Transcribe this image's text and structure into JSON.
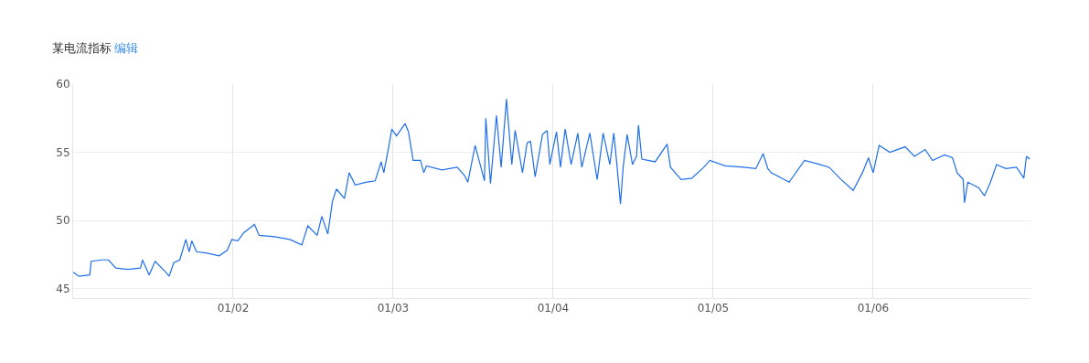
{
  "chart_data": {
    "type": "line",
    "title": "某电流指标",
    "annotations": [
      "编辑"
    ],
    "x": [
      "--01-01T00:00",
      "--01-01T00:54",
      "--01-01T02:30",
      "--01-01T02:42",
      "--01-01T04:18",
      "--01-01T05:18",
      "--01-01T06:24",
      "--01-01T08:12",
      "--01-01T10:06",
      "--01-01T10:24",
      "--01-01T11:24",
      "--01-01T12:18",
      "--01-01T13:42",
      "--01-01T14:24",
      "--01-01T15:06",
      "--01-01T16:00",
      "--01-01T16:54",
      "--01-01T17:24",
      "--01-01T17:48",
      "--01-01T18:30",
      "--01-01T20:06",
      "--01-01T21:54",
      "--01-01T23:06",
      "--01-01T23:48",
      "--01-02T00:42",
      "--01-02T01:36",
      "--01-02T03:12",
      "--01-02T03:54",
      "--01-02T06:12",
      "--01-02T08:30",
      "--01-02T10:18",
      "--01-02T11:12",
      "--01-02T12:36",
      "--01-02T13:18",
      "--01-02T14:12",
      "--01-02T14:54",
      "--01-02T15:30",
      "--01-02T16:42",
      "--01-02T17:24",
      "--01-02T18:18",
      "--01-02T19:54",
      "--01-02T21:18",
      "--01-02T22:12",
      "--01-02T22:36",
      "--01-02T23:18",
      "--01-02T23:48",
      "--01-03T00:30",
      "--01-03T01:48",
      "--01-03T02:18",
      "--01-03T03:00",
      "--01-03T04:06",
      "--01-03T04:36",
      "--01-03T05:00",
      "--01-03T07:18",
      "--01-03T09:36",
      "--01-03T10:42",
      "--01-03T11:12",
      "--01-03T12:18",
      "--01-03T13:42",
      "--01-03T13:54",
      "--01-03T14:36",
      "--01-03T15:30",
      "--01-03T16:12",
      "--01-03T17:00",
      "--01-03T17:48",
      "--01-03T18:18",
      "--01-03T19:24",
      "--01-03T20:06",
      "--01-03T20:36",
      "--01-03T21:18",
      "--01-03T22:24",
      "--01-03T23:06",
      "--01-03T23:30",
      "--01-04T00:30",
      "--01-04T01:06",
      "--01-04T01:48",
      "--01-04T02:42",
      "--01-04T03:42",
      "--01-04T04:18",
      "--01-04T05:30",
      "--01-04T06:36",
      "--01-04T07:30",
      "--01-04T08:30",
      "--01-04T09:06",
      "--01-04T09:36",
      "--01-04T10:06",
      "--01-04T10:30",
      "--01-04T11:06",
      "--01-04T11:54",
      "--01-04T12:30",
      "--01-04T12:48",
      "--01-04T13:18",
      "--01-04T15:18",
      "--01-04T17:06",
      "--01-04T17:36",
      "--01-04T19:12",
      "--01-04T20:48",
      "--01-04T22:36",
      "--01-04T23:30",
      "--01-05T01:48",
      "--01-05T04:36",
      "--01-05T06:24",
      "--01-05T07:30",
      "--01-05T08:12",
      "--01-05T08:42",
      "--01-05T11:24",
      "--01-05T13:42",
      "--01-05T16:00",
      "--01-05T17:24",
      "--01-05T19:12",
      "--01-05T21:00",
      "--01-05T22:24",
      "--01-05T23:18",
      "--01-06T00:00",
      "--01-06T00:54",
      "--01-06T02:30",
      "--01-06T04:48",
      "--01-06T06:12",
      "--01-06T07:48",
      "--01-06T08:54",
      "--01-06T10:42",
      "--01-06T11:54",
      "--01-06T12:36",
      "--01-06T13:30",
      "--01-06T13:42",
      "--01-06T14:12",
      "--01-06T15:48",
      "--01-06T16:42",
      "--01-06T17:36",
      "--01-06T18:30",
      "--01-06T19:54",
      "--01-06T21:30",
      "--01-06T22:36",
      "--01-06T23:00",
      "--01-06T23:30"
    ],
    "series": [
      {
        "color": "#1f6fea",
        "values": [
          46.2,
          45.9,
          46.0,
          47.0,
          47.1,
          47.1,
          46.5,
          46.4,
          46.5,
          47.1,
          46.0,
          47.0,
          46.3,
          45.9,
          46.9,
          47.1,
          48.6,
          47.7,
          48.5,
          47.7,
          47.6,
          47.4,
          47.8,
          48.6,
          48.5,
          49.1,
          49.7,
          48.9,
          48.8,
          48.6,
          48.2,
          49.6,
          48.9,
          50.3,
          49.0,
          51.4,
          52.3,
          51.6,
          53.5,
          52.6,
          52.8,
          52.9,
          54.3,
          53.5,
          55.3,
          56.7,
          56.2,
          57.1,
          56.5,
          54.4,
          54.4,
          53.5,
          54.0,
          53.7,
          53.9,
          53.3,
          52.8,
          55.5,
          52.9,
          57.5,
          52.7,
          57.7,
          53.9,
          58.9,
          54.1,
          56.6,
          53.5,
          55.7,
          55.8,
          53.2,
          56.3,
          56.6,
          54.1,
          56.5,
          53.9,
          56.7,
          54.1,
          56.4,
          53.9,
          56.4,
          53.0,
          56.4,
          54.1,
          56.4,
          53.9,
          51.2,
          53.9,
          56.3,
          54.1,
          54.7,
          57.0,
          54.5,
          54.3,
          55.6,
          53.9,
          53.0,
          53.1,
          53.9,
          54.4,
          54.0,
          53.9,
          53.8,
          54.9,
          53.8,
          53.5,
          52.8,
          54.4,
          54.1,
          53.9,
          53.0,
          52.2,
          53.5,
          54.6,
          53.5,
          55.5,
          55.0,
          55.4,
          54.7,
          55.2,
          54.4,
          54.8,
          54.6,
          53.5,
          53.0,
          51.3,
          52.8,
          52.4,
          51.8,
          52.8,
          54.1,
          53.8,
          53.9,
          53.1,
          54.7,
          54.5
        ]
      }
    ],
    "xlim": [
      "--01-01T00:00",
      "--01-06T23:36"
    ],
    "xticks": [
      {
        "value": "--01-02",
        "label": "01/02"
      },
      {
        "value": "--01-03",
        "label": "01/03"
      },
      {
        "value": "--01-04",
        "label": "01/04"
      },
      {
        "value": "--01-05",
        "label": "01/05"
      },
      {
        "value": "--01-06",
        "label": "01/06"
      }
    ],
    "ylim": [
      44.3,
      60
    ],
    "yticks": [
      45,
      50,
      55,
      60
    ],
    "grid": true,
    "marker": "none",
    "line_style": "solid"
  }
}
